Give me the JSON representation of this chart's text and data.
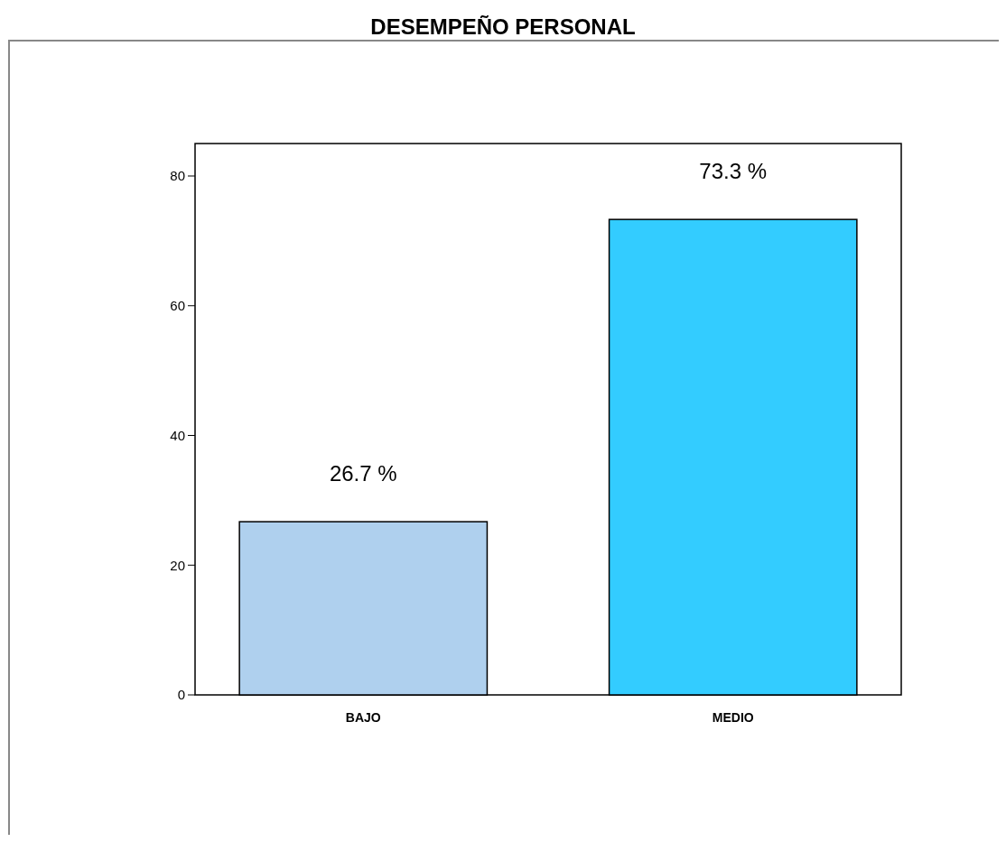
{
  "chart_data": {
    "type": "bar",
    "title": "DESEMPEÑO PERSONAL",
    "categories": [
      "BAJO",
      "MEDIO"
    ],
    "values": [
      26.7,
      73.3
    ],
    "colors": [
      "#afd0ee",
      "#33ccff"
    ],
    "value_labels": [
      "26.7 %",
      "73.3 %"
    ],
    "ylim": [
      0,
      85
    ],
    "yticks": [
      0,
      20,
      40,
      60,
      80
    ]
  }
}
